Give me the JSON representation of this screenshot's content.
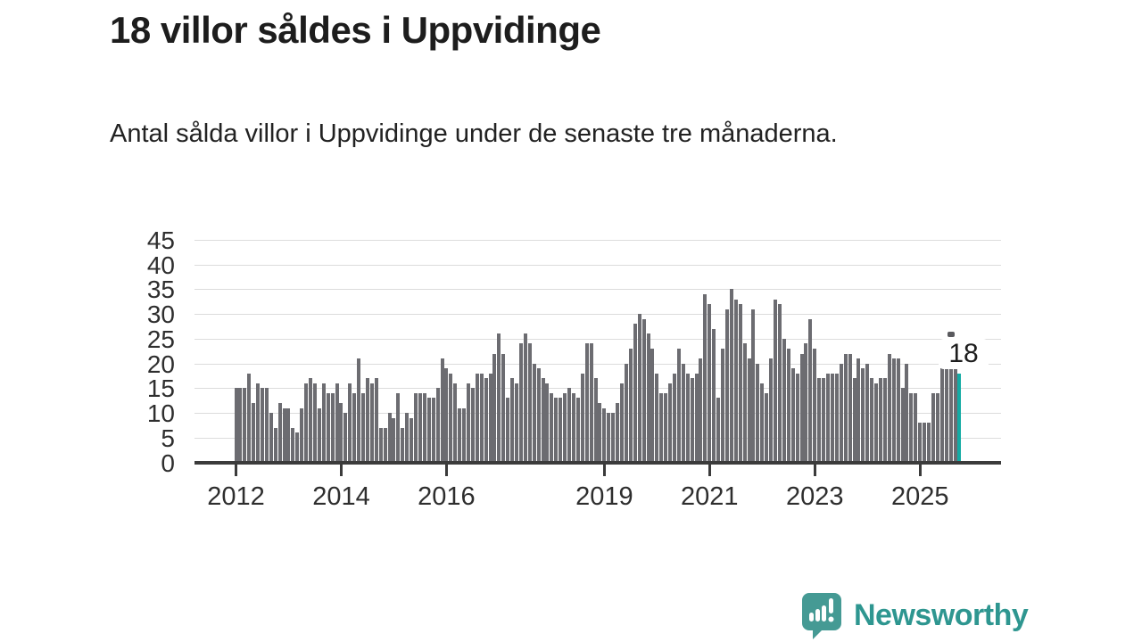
{
  "title": "18 villor såldes i Uppvidinge",
  "subtitle": "Antal sålda villor i Uppvidinge under de senaste tre månaderna.",
  "chart_data": {
    "type": "bar",
    "title": "18 villor såldes i Uppvidinge",
    "subtitle": "Antal sålda villor i Uppvidinge under de senaste tre månaderna.",
    "unit": "antal sålda villor (rullande tre månader)",
    "x_start_year": 2012,
    "x_tick_labels": [
      "2012",
      "2014",
      "2016",
      "2019",
      "2021",
      "2023",
      "2025"
    ],
    "x_tick_years": [
      2012,
      2014,
      2016,
      2019,
      2021,
      2023,
      2025
    ],
    "y_ticks": [
      0,
      5,
      10,
      15,
      20,
      25,
      30,
      35,
      40,
      45
    ],
    "ylim": [
      0,
      45
    ],
    "grid": true,
    "legend_position": "none",
    "bar_color": "#6c6c71",
    "highlight_color": "#14aba4",
    "axis_color": "#3b3b3b",
    "gridline_color": "#dcdcdc",
    "annotation": {
      "label": "18",
      "applies_to": "last-bar"
    },
    "values_by_year": {
      "2012": [
        15,
        15,
        15,
        18,
        12,
        16,
        15,
        15,
        10,
        7,
        12,
        11
      ],
      "2013": [
        11,
        7,
        6,
        11,
        16,
        17,
        16,
        11,
        16,
        14,
        14,
        16
      ],
      "2014": [
        12,
        10,
        16,
        14,
        21,
        14,
        17,
        16,
        17,
        7,
        7,
        10
      ],
      "2015": [
        9,
        14,
        7,
        10,
        9,
        14,
        14,
        14,
        13,
        13,
        15,
        21
      ],
      "2016": [
        19,
        18,
        16,
        11,
        11,
        16,
        15,
        18,
        18,
        17,
        18,
        22
      ],
      "2017": [
        26,
        22,
        13,
        17,
        16,
        24,
        26,
        24,
        20,
        19,
        17,
        16
      ],
      "2018": [
        14,
        13,
        13,
        14,
        15,
        14,
        13,
        18,
        24,
        24,
        17,
        12
      ],
      "2019": [
        11,
        10,
        10,
        12,
        16,
        20,
        23,
        28,
        30,
        29,
        26,
        23
      ],
      "2020": [
        18,
        14,
        14,
        16,
        18,
        23,
        20,
        18,
        17,
        18,
        21,
        34
      ],
      "2021": [
        32,
        27,
        13,
        23,
        31,
        35,
        33,
        32,
        24,
        21,
        31,
        20
      ],
      "2022": [
        16,
        14,
        21,
        33,
        32,
        25,
        23,
        19,
        18,
        22,
        24,
        29
      ],
      "2023": [
        23,
        17,
        17,
        18,
        18,
        18,
        20,
        22,
        22,
        17,
        21,
        19
      ],
      "2024": [
        20,
        17,
        16,
        17,
        17,
        22,
        21,
        21,
        15,
        20,
        14,
        14
      ],
      "2025": [
        8,
        8,
        8,
        14,
        14,
        19,
        20,
        20,
        20,
        18
      ]
    }
  },
  "logo": {
    "text": "Newsworthy",
    "color": "#2e9690"
  }
}
